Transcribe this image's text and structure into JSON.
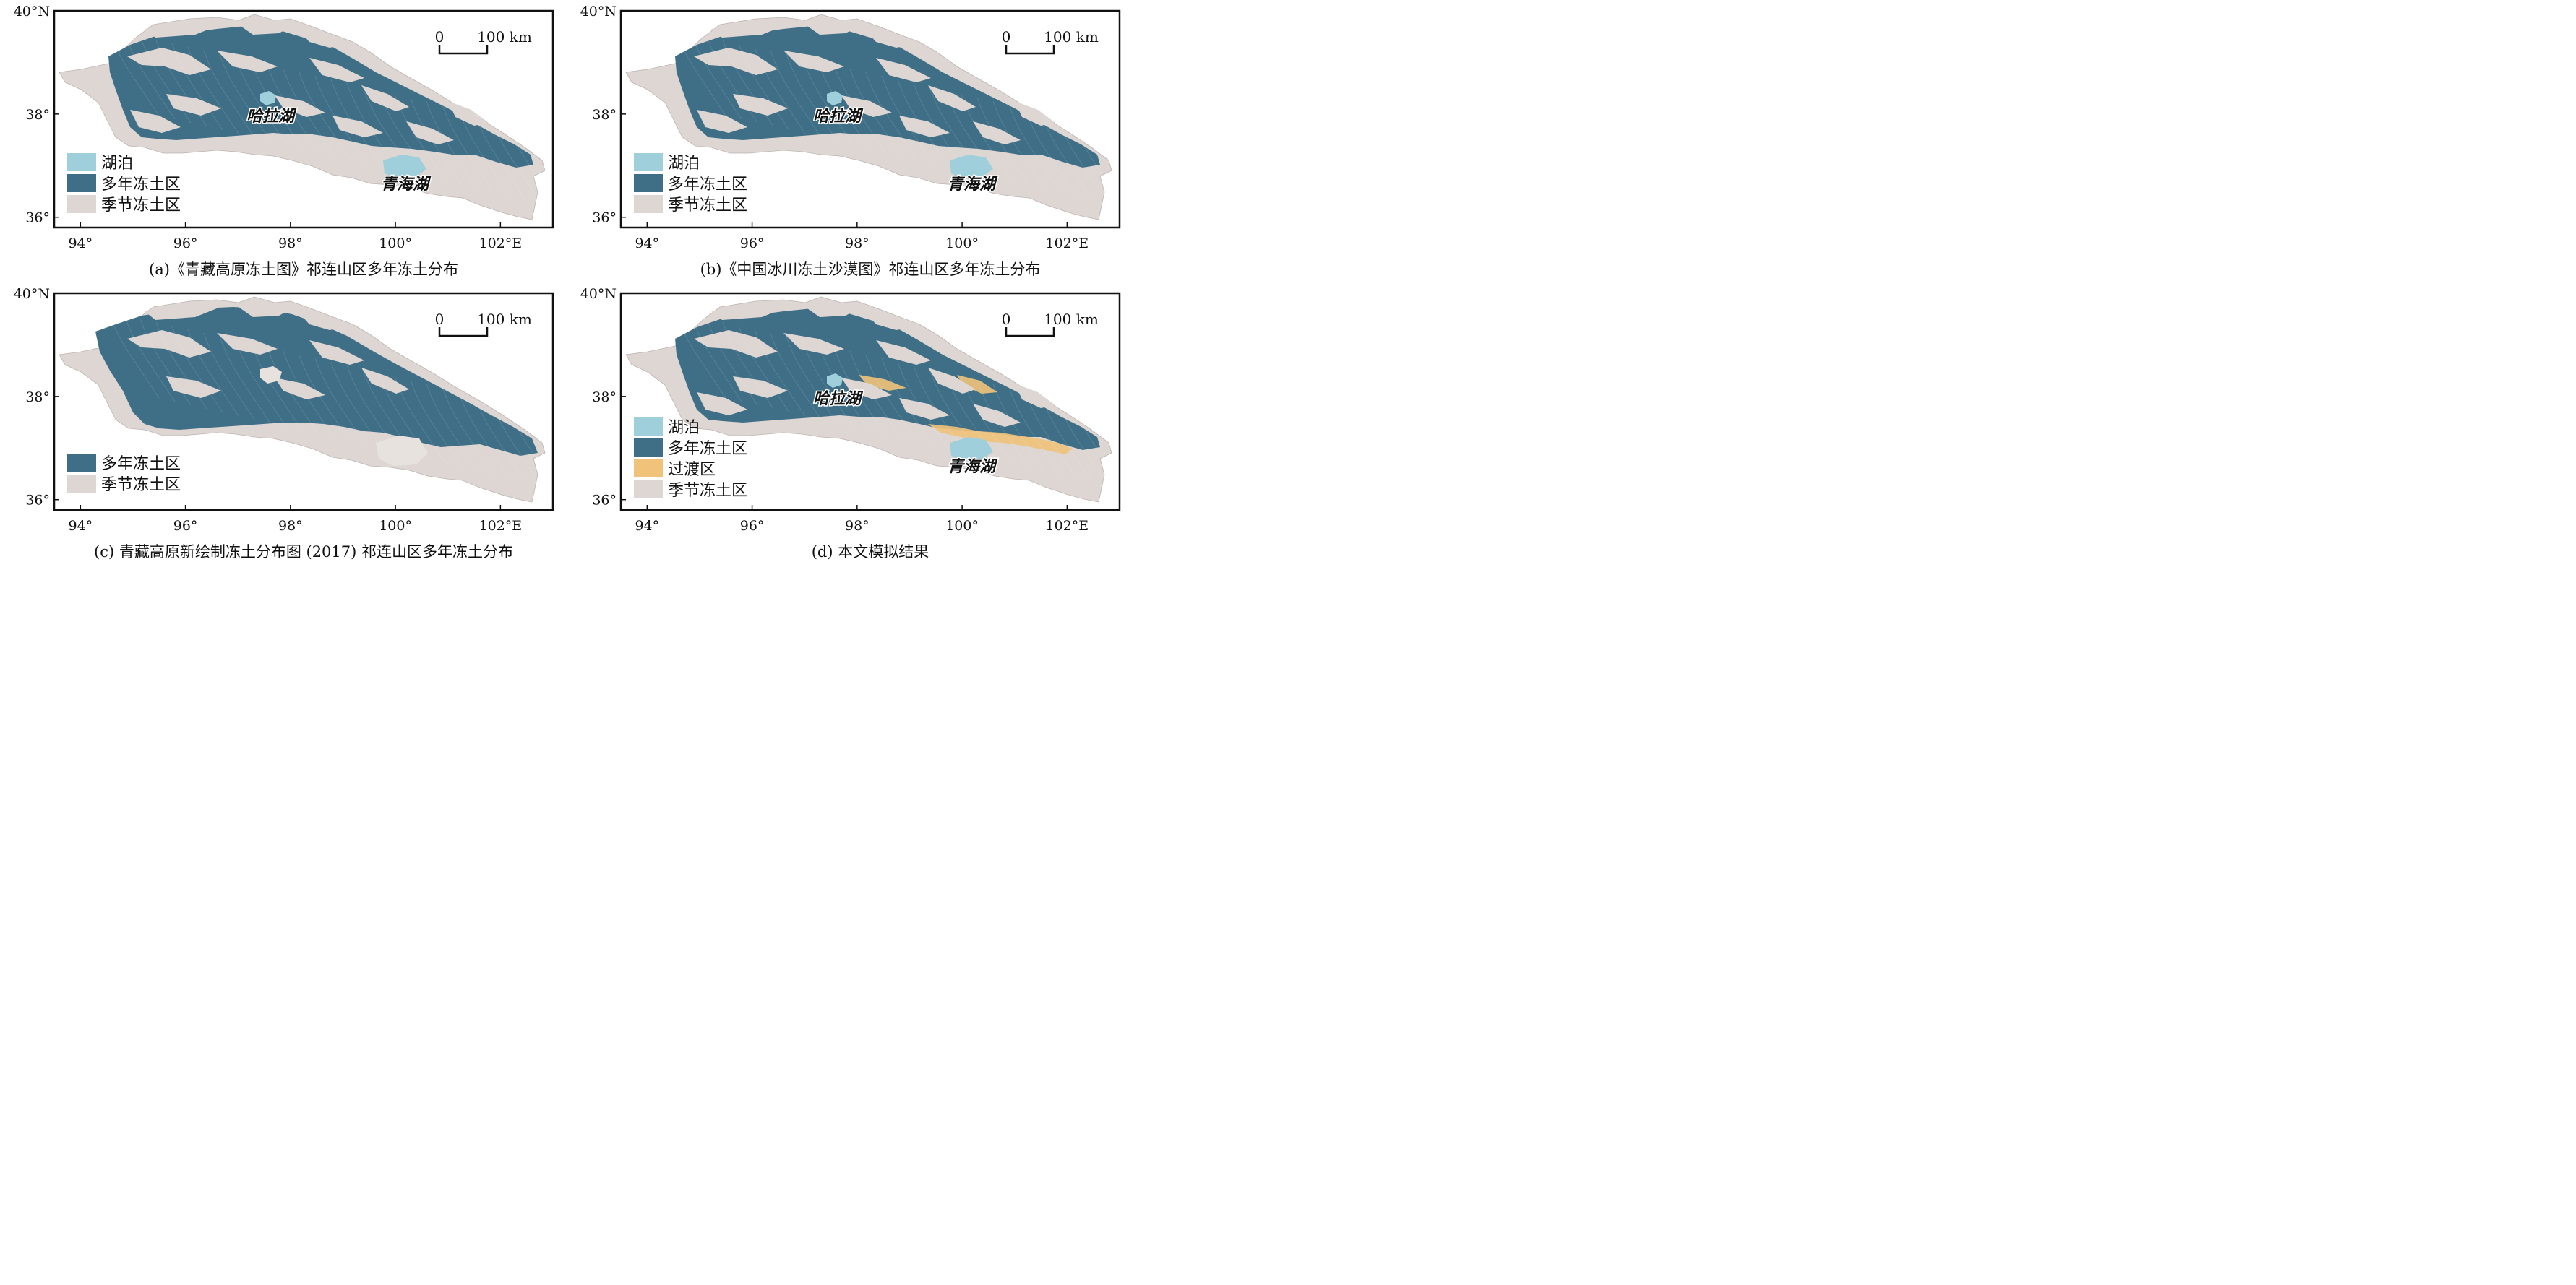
{
  "colors": {
    "lake": "#9ecfdb",
    "permafrost": "#3f6f87",
    "seasonal": "#ddd6d3",
    "transition": "#f0c27a",
    "frame": "#111111"
  },
  "axes": {
    "lat_ticks": [
      "40°N",
      "38°",
      "36°"
    ],
    "lon_ticks": [
      "94°",
      "96°",
      "98°",
      "100°",
      "102°E"
    ],
    "lon_range": [
      93.5,
      103.0
    ],
    "lat_range": [
      35.8,
      40.0
    ]
  },
  "scale_bar": {
    "zero": "0",
    "length_label": "100 km"
  },
  "lake_names": {
    "hala": "哈拉湖",
    "qinghai": "青海湖"
  },
  "panels": [
    {
      "id": "a",
      "caption": "(a)《青藏高原冻土图》祁连山区多年冻土分布",
      "show_lake_labels": true,
      "legend": [
        {
          "label": "湖泊",
          "color_key": "lake"
        },
        {
          "label": "多年冻土区",
          "color_key": "permafrost"
        },
        {
          "label": "季节冻土区",
          "color_key": "seasonal"
        }
      ]
    },
    {
      "id": "b",
      "caption": "(b)《中国冰川冻土沙漠图》祁连山区多年冻土分布",
      "show_lake_labels": true,
      "legend": [
        {
          "label": "湖泊",
          "color_key": "lake"
        },
        {
          "label": "多年冻土区",
          "color_key": "permafrost"
        },
        {
          "label": "季节冻土区",
          "color_key": "seasonal"
        }
      ]
    },
    {
      "id": "c",
      "caption": "(c) 青藏高原新绘制冻土分布图 (2017) 祁连山区多年冻土分布",
      "show_lake_labels": false,
      "legend": [
        {
          "label": "多年冻土区",
          "color_key": "permafrost"
        },
        {
          "label": "季节冻土区",
          "color_key": "seasonal"
        }
      ]
    },
    {
      "id": "d",
      "caption": "(d) 本文模拟结果",
      "show_lake_labels": true,
      "legend": [
        {
          "label": "湖泊",
          "color_key": "lake"
        },
        {
          "label": "多年冻土区",
          "color_key": "permafrost"
        },
        {
          "label": "过渡区",
          "color_key": "transition"
        },
        {
          "label": "季节冻土区",
          "color_key": "seasonal"
        }
      ]
    }
  ]
}
